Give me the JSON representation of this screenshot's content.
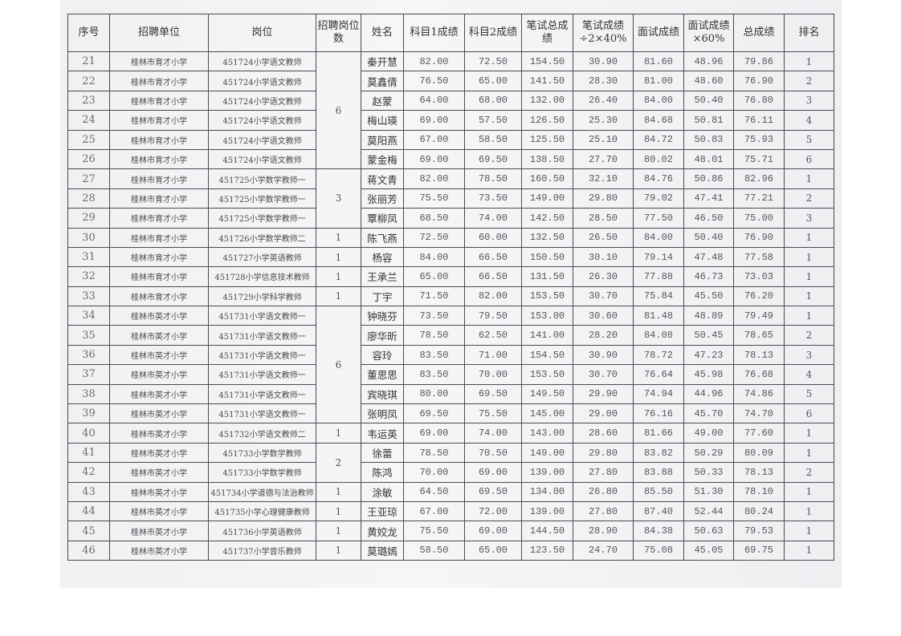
{
  "headers": [
    "序号",
    "招聘单位",
    "岗位",
    "招聘岗位数",
    "姓名",
    "科目1成绩",
    "科目2成绩",
    "笔试总成绩",
    "笔试成绩÷2×40%",
    "面试成绩",
    "面试成绩×60%",
    "总成绩",
    "排名"
  ],
  "rows": [
    {
      "no": "21",
      "unit": "桂林市育才小学",
      "pos": "451724小学语文教师",
      "count": "6",
      "span": 6,
      "name": "秦开慧",
      "s1": "82.00",
      "s2": "72.50",
      "wt": "154.50",
      "w40": "30.90",
      "iv": "81.60",
      "i60": "48.96",
      "total": "79.86",
      "rank": "1"
    },
    {
      "no": "22",
      "unit": "桂林市育才小学",
      "pos": "451724小学语文教师",
      "name": "莫鑫倩",
      "s1": "76.50",
      "s2": "65.00",
      "wt": "141.50",
      "w40": "28.30",
      "iv": "81.00",
      "i60": "48.60",
      "total": "76.90",
      "rank": "2"
    },
    {
      "no": "23",
      "unit": "桂林市育才小学",
      "pos": "451724小学语文教师",
      "name": "赵蒙",
      "s1": "64.00",
      "s2": "68.00",
      "wt": "132.00",
      "w40": "26.40",
      "iv": "84.00",
      "i60": "50.40",
      "total": "76.80",
      "rank": "3"
    },
    {
      "no": "24",
      "unit": "桂林市育才小学",
      "pos": "451724小学语文教师",
      "name": "梅山瑛",
      "s1": "69.00",
      "s2": "57.50",
      "wt": "126.50",
      "w40": "25.30",
      "iv": "84.68",
      "i60": "50.81",
      "total": "76.11",
      "rank": "4"
    },
    {
      "no": "25",
      "unit": "桂林市育才小学",
      "pos": "451724小学语文教师",
      "name": "莫阳燕",
      "s1": "67.00",
      "s2": "58.50",
      "wt": "125.50",
      "w40": "25.10",
      "iv": "84.72",
      "i60": "50.83",
      "total": "75.93",
      "rank": "5"
    },
    {
      "no": "26",
      "unit": "桂林市育才小学",
      "pos": "451724小学语文教师",
      "name": "蒙金梅",
      "s1": "69.00",
      "s2": "69.50",
      "wt": "138.50",
      "w40": "27.70",
      "iv": "80.02",
      "i60": "48.01",
      "total": "75.71",
      "rank": "6"
    },
    {
      "no": "27",
      "unit": "桂林市育才小学",
      "pos": "451725小学数学教师一",
      "count": "3",
      "span": 3,
      "name": "蒋文青",
      "s1": "82.00",
      "s2": "78.50",
      "wt": "160.50",
      "w40": "32.10",
      "iv": "84.76",
      "i60": "50.86",
      "total": "82.96",
      "rank": "1"
    },
    {
      "no": "28",
      "unit": "桂林市育才小学",
      "pos": "451725小学数学教师一",
      "name": "张丽芳",
      "s1": "75.50",
      "s2": "73.50",
      "wt": "149.00",
      "w40": "29.80",
      "iv": "79.02",
      "i60": "47.41",
      "total": "77.21",
      "rank": "2"
    },
    {
      "no": "29",
      "unit": "桂林市育才小学",
      "pos": "451725小学数学教师一",
      "name": "覃柳凤",
      "s1": "68.50",
      "s2": "74.00",
      "wt": "142.50",
      "w40": "28.50",
      "iv": "77.50",
      "i60": "46.50",
      "total": "75.00",
      "rank": "3"
    },
    {
      "no": "30",
      "unit": "桂林市育才小学",
      "pos": "451726小学数学教师二",
      "count": "1",
      "span": 1,
      "name": "陈飞燕",
      "s1": "72.50",
      "s2": "60.00",
      "wt": "132.50",
      "w40": "26.50",
      "iv": "84.00",
      "i60": "50.40",
      "total": "76.90",
      "rank": "1"
    },
    {
      "no": "31",
      "unit": "桂林市育才小学",
      "pos": "451727小学英语教师",
      "count": "1",
      "span": 1,
      "name": "杨容",
      "s1": "84.00",
      "s2": "66.50",
      "wt": "150.50",
      "w40": "30.10",
      "iv": "79.14",
      "i60": "47.48",
      "total": "77.58",
      "rank": "1"
    },
    {
      "no": "32",
      "unit": "桂林市育才小学",
      "pos": "451728小学信息技术教师",
      "count": "1",
      "span": 1,
      "name": "王承兰",
      "s1": "65.00",
      "s2": "66.50",
      "wt": "131.50",
      "w40": "26.30",
      "iv": "77.88",
      "i60": "46.73",
      "total": "73.03",
      "rank": "1"
    },
    {
      "no": "33",
      "unit": "桂林市育才小学",
      "pos": "451729小学科学教师",
      "count": "1",
      "span": 1,
      "name": "丁宇",
      "s1": "71.50",
      "s2": "82.00",
      "wt": "153.50",
      "w40": "30.70",
      "iv": "75.84",
      "i60": "45.50",
      "total": "76.20",
      "rank": "1"
    },
    {
      "no": "34",
      "unit": "桂林市英才小学",
      "pos": "451731小学语文教师一",
      "count": "6",
      "span": 6,
      "name": "钟晓芬",
      "s1": "73.50",
      "s2": "79.50",
      "wt": "153.00",
      "w40": "30.60",
      "iv": "81.48",
      "i60": "48.89",
      "total": "79.49",
      "rank": "1"
    },
    {
      "no": "35",
      "unit": "桂林市英才小学",
      "pos": "451731小学语文教师一",
      "name": "廖华昕",
      "s1": "78.50",
      "s2": "62.50",
      "wt": "141.00",
      "w40": "28.20",
      "iv": "84.08",
      "i60": "50.45",
      "total": "78.65",
      "rank": "2"
    },
    {
      "no": "36",
      "unit": "桂林市英才小学",
      "pos": "451731小学语文教师一",
      "name": "容玲",
      "s1": "83.50",
      "s2": "71.00",
      "wt": "154.50",
      "w40": "30.90",
      "iv": "78.72",
      "i60": "47.23",
      "total": "78.13",
      "rank": "3"
    },
    {
      "no": "37",
      "unit": "桂林市英才小学",
      "pos": "451731小学语文教师一",
      "name": "董思思",
      "s1": "83.50",
      "s2": "70.00",
      "wt": "153.50",
      "w40": "30.70",
      "iv": "76.64",
      "i60": "45.98",
      "total": "76.68",
      "rank": "4"
    },
    {
      "no": "38",
      "unit": "桂林市英才小学",
      "pos": "451731小学语文教师一",
      "name": "宾晓琪",
      "s1": "80.00",
      "s2": "69.50",
      "wt": "149.50",
      "w40": "29.90",
      "iv": "74.94",
      "i60": "44.96",
      "total": "74.86",
      "rank": "5"
    },
    {
      "no": "39",
      "unit": "桂林市英才小学",
      "pos": "451731小学语文教师一",
      "name": "张明凤",
      "s1": "69.50",
      "s2": "75.50",
      "wt": "145.00",
      "w40": "29.00",
      "iv": "76.16",
      "i60": "45.70",
      "total": "74.70",
      "rank": "6"
    },
    {
      "no": "40",
      "unit": "桂林市英才小学",
      "pos": "451732小学语文教师二",
      "count": "1",
      "span": 1,
      "name": "韦运英",
      "s1": "69.00",
      "s2": "74.00",
      "wt": "143.00",
      "w40": "28.60",
      "iv": "81.66",
      "i60": "49.00",
      "total": "77.60",
      "rank": "1"
    },
    {
      "no": "41",
      "unit": "桂林市英才小学",
      "pos": "451733小学数学教师",
      "count": "2",
      "span": 2,
      "name": "徐蕾",
      "s1": "78.50",
      "s2": "70.50",
      "wt": "149.00",
      "w40": "29.80",
      "iv": "83.82",
      "i60": "50.29",
      "total": "80.09",
      "rank": "1"
    },
    {
      "no": "42",
      "unit": "桂林市英才小学",
      "pos": "451733小学数学教师",
      "name": "陈鸿",
      "s1": "70.00",
      "s2": "69.00",
      "wt": "139.00",
      "w40": "27.80",
      "iv": "83.88",
      "i60": "50.33",
      "total": "78.13",
      "rank": "2"
    },
    {
      "no": "43",
      "unit": "桂林市英才小学",
      "pos": "451734小学道德与法治教师",
      "count": "1",
      "span": 1,
      "name": "涂敏",
      "s1": "64.50",
      "s2": "69.50",
      "wt": "134.00",
      "w40": "26.80",
      "iv": "85.50",
      "i60": "51.30",
      "total": "78.10",
      "rank": "1"
    },
    {
      "no": "44",
      "unit": "桂林市英才小学",
      "pos": "451735小学心理健康教师",
      "count": "1",
      "span": 1,
      "name": "王亚琼",
      "s1": "67.00",
      "s2": "72.00",
      "wt": "139.00",
      "w40": "27.80",
      "iv": "87.40",
      "i60": "52.44",
      "total": "80.24",
      "rank": "1"
    },
    {
      "no": "45",
      "unit": "桂林市英才小学",
      "pos": "451736小学英语教师",
      "count": "1",
      "span": 1,
      "name": "黄姣龙",
      "s1": "75.50",
      "s2": "69.00",
      "wt": "144.50",
      "w40": "28.90",
      "iv": "84.38",
      "i60": "50.63",
      "total": "79.53",
      "rank": "1"
    },
    {
      "no": "46",
      "unit": "桂林市英才小学",
      "pos": "451737小学音乐教师",
      "count": "1",
      "span": 1,
      "name": "莫璐嫣",
      "s1": "58.50",
      "s2": "65.00",
      "wt": "123.50",
      "w40": "24.70",
      "iv": "75.08",
      "i60": "45.05",
      "total": "69.75",
      "rank": "1"
    }
  ]
}
